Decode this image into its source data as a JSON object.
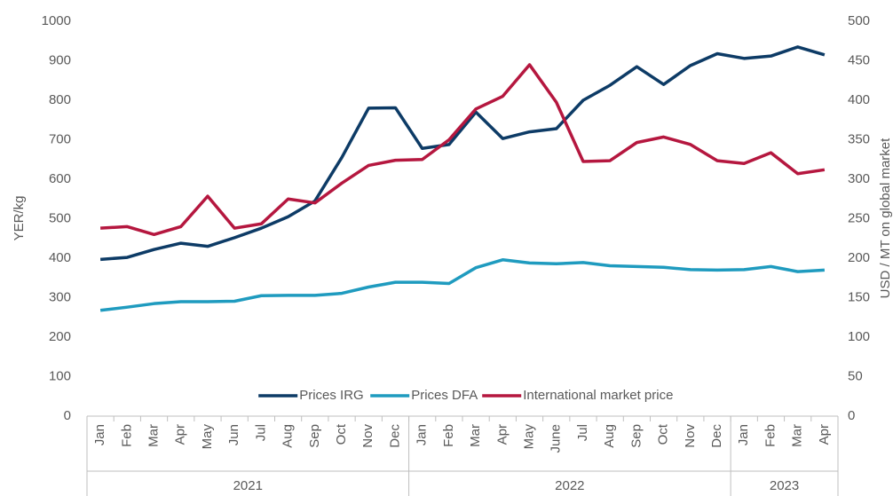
{
  "chart_data": {
    "type": "line",
    "y_label": "YER/kg",
    "y2_label": "USD / MT on global market",
    "category_groups": [
      {
        "label": "2021",
        "categories": [
          "Jan",
          "Feb",
          "Mar",
          "Apr",
          "May",
          "Jun",
          "Jul",
          "Aug",
          "Sep",
          "Oct",
          "Nov",
          "Dec"
        ]
      },
      {
        "label": "2022",
        "categories": [
          "Jan",
          "Feb",
          "Mar",
          "Apr",
          "May",
          "June",
          "Jul",
          "Aug",
          "Sep",
          "Oct",
          "Nov",
          "Dec"
        ]
      },
      {
        "label": "2023",
        "categories": [
          "Jan",
          "Feb",
          "Mar",
          "Apr"
        ]
      }
    ],
    "series": [
      {
        "name": "Prices IRG",
        "color": "#0d3b66",
        "values": [
          397,
          402,
          422,
          438,
          430,
          452,
          476,
          505,
          545,
          655,
          780,
          781,
          678,
          688,
          770,
          703,
          720,
          728,
          800,
          838,
          885,
          840,
          888,
          918,
          906,
          912,
          935,
          915
        ]
      },
      {
        "name": "Prices DFA",
        "color": "#1f9bbf",
        "values": [
          268,
          276,
          285,
          290,
          290,
          291,
          305,
          306,
          306,
          311,
          327,
          339,
          339,
          336,
          376,
          396,
          388,
          386,
          389,
          381,
          379,
          377,
          371,
          370,
          371,
          379,
          366,
          370
        ]
      },
      {
        "name": "International market price",
        "color": "#b5173f",
        "axis": "y2",
        "values": [
          238,
          240,
          230,
          240,
          278.5,
          238,
          243.5,
          275,
          270,
          295,
          317.5,
          324,
          325,
          350,
          389,
          405,
          445,
          397.5,
          322.5,
          323.5,
          346.5,
          353.5,
          344,
          323.5,
          320,
          333.5,
          307,
          312
        ]
      }
    ],
    "ylim": [
      0,
      1000
    ],
    "yticks": [
      0,
      100,
      200,
      300,
      400,
      500,
      600,
      700,
      800,
      900,
      1000
    ],
    "y2lim": [
      0,
      500
    ],
    "y2ticks": [
      0,
      50,
      100,
      150,
      200,
      250,
      300,
      350,
      400,
      450,
      500
    ],
    "grid": false,
    "legend": "bottom"
  }
}
